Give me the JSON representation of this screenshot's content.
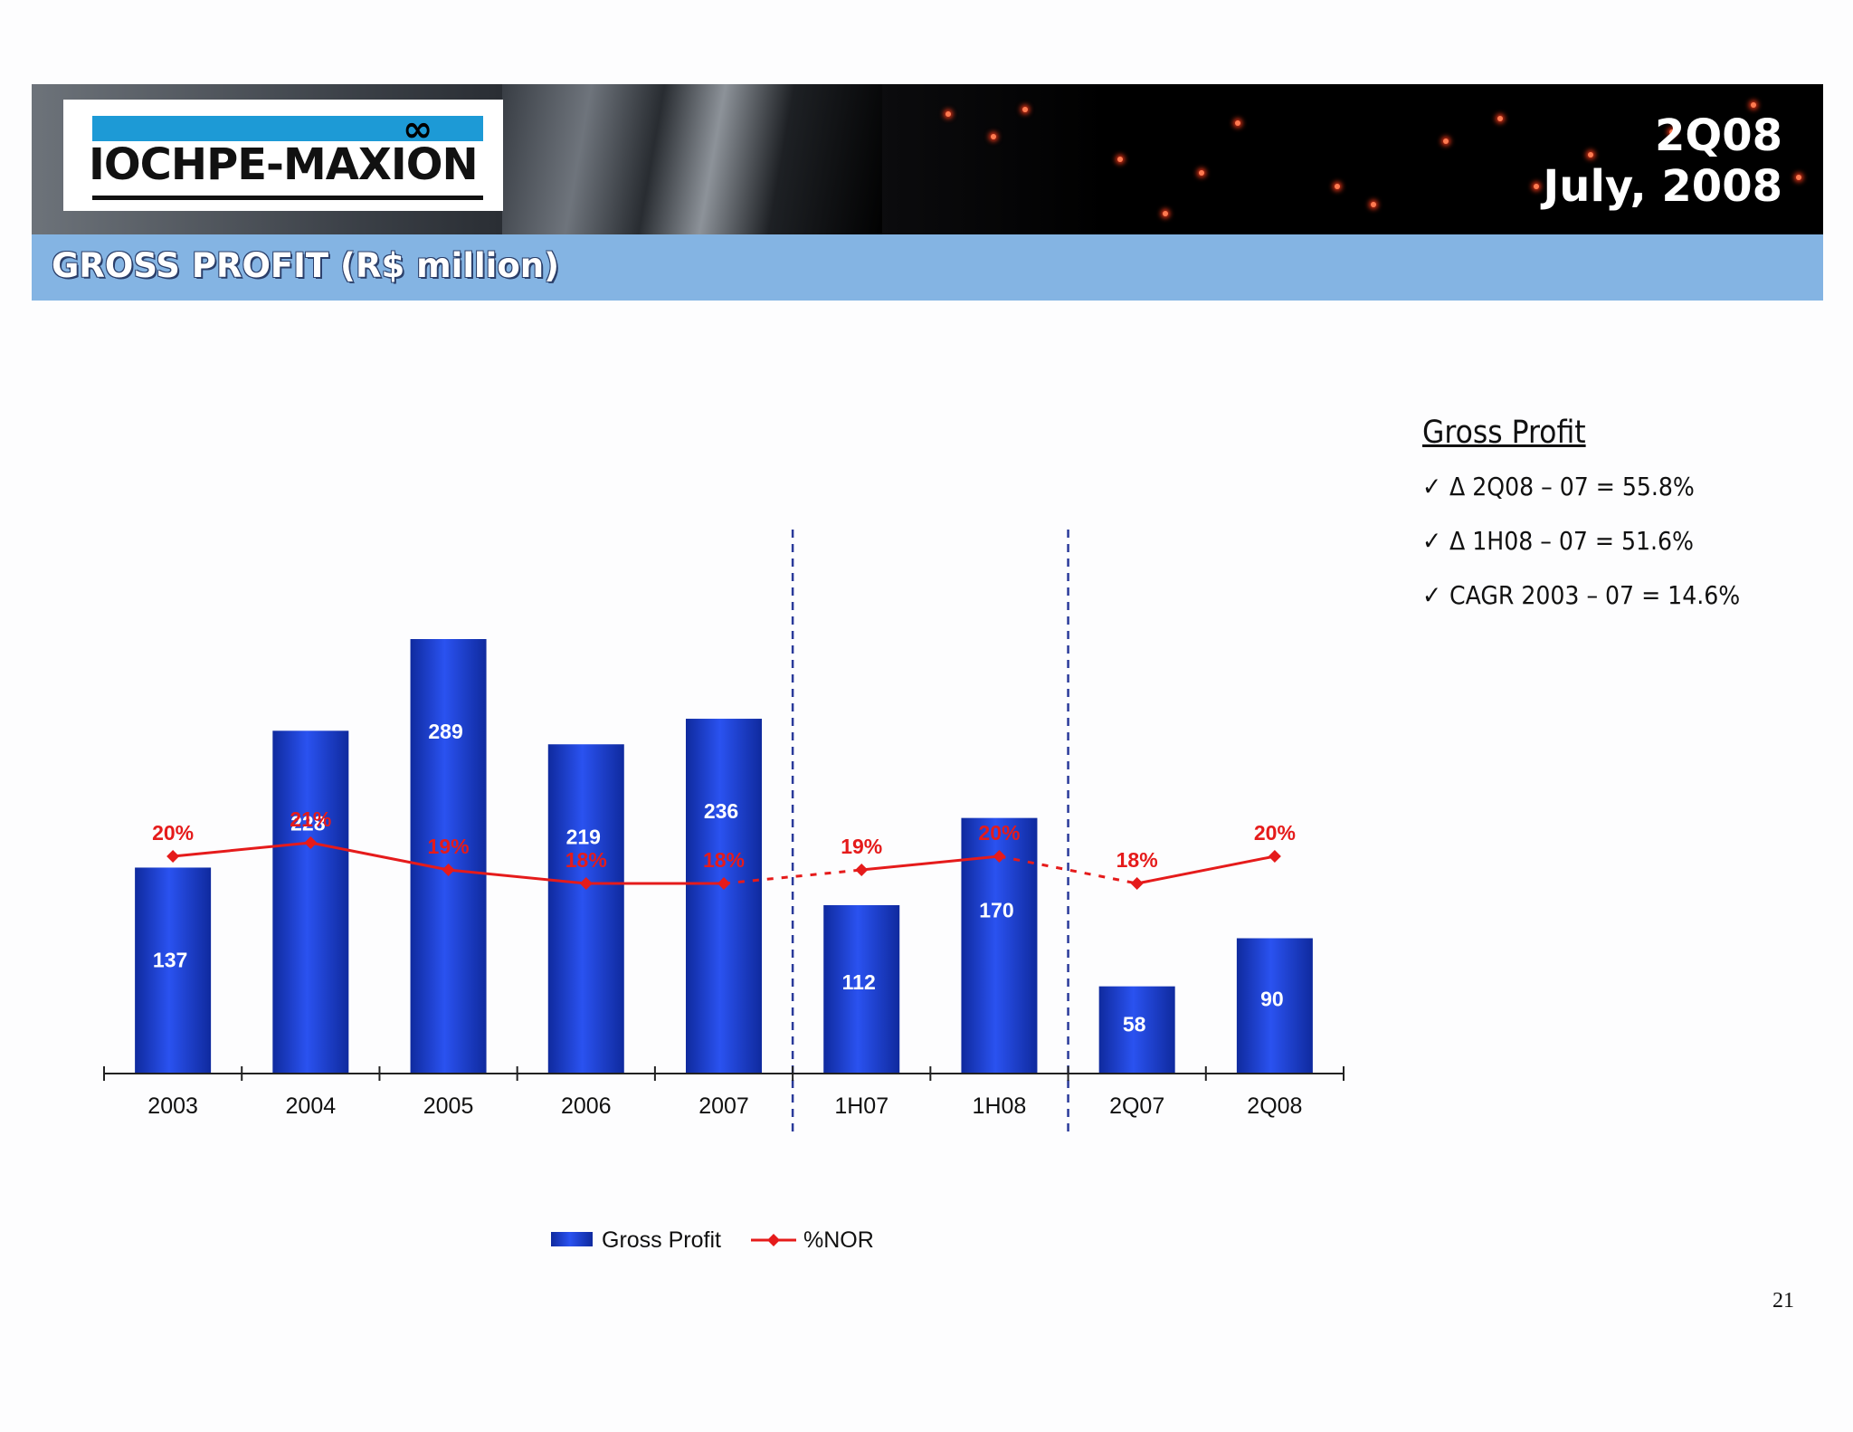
{
  "header": {
    "logo_text": "IOCHPE-MAXION",
    "logo_symbol": "∞",
    "period_line1": "2Q08",
    "period_line2": "July, 2008"
  },
  "slide_title": "GROSS PROFIT (R$ million)",
  "side_panel": {
    "heading": "Gross Profit",
    "items": [
      {
        "check": "✓",
        "text": "Δ 2Q08 – 07 = 55.8%"
      },
      {
        "check": "✓",
        "text": "Δ 1H08 – 07 = 51.6%"
      },
      {
        "check": "✓",
        "text": "CAGR 2003 – 07 = 14.6%"
      }
    ]
  },
  "page_number": "21",
  "colors": {
    "bar": "#1a3fd6",
    "line": "#e51b1b",
    "divider": "#2a3a9a",
    "title_bar": "#84b4e3"
  },
  "chart_data": {
    "type": "bar",
    "categories": [
      "2003",
      "2004",
      "2005",
      "2006",
      "2007",
      "1H07",
      "1H08",
      "2Q07",
      "2Q08"
    ],
    "series": [
      {
        "name": "Gross Profit",
        "type": "bar",
        "values": [
          137,
          228,
          289,
          219,
          236,
          112,
          170,
          58,
          90
        ],
        "labels": [
          "137",
          "228",
          "289",
          "219",
          "236",
          "112",
          "170",
          "58",
          "90"
        ]
      },
      {
        "name": "%NOR",
        "type": "line",
        "values": [
          20,
          21,
          19,
          18,
          18,
          19,
          20,
          18,
          20
        ],
        "labels": [
          "20%",
          "21%",
          "19%",
          "18%",
          "18%",
          "19%",
          "20%",
          "18%",
          "20%"
        ]
      }
    ],
    "groups": [
      [
        "2003",
        "2004",
        "2005",
        "2006",
        "2007"
      ],
      [
        "1H07",
        "1H08"
      ],
      [
        "2Q07",
        "2Q08"
      ]
    ],
    "legend_position": "bottom",
    "grid": false
  }
}
